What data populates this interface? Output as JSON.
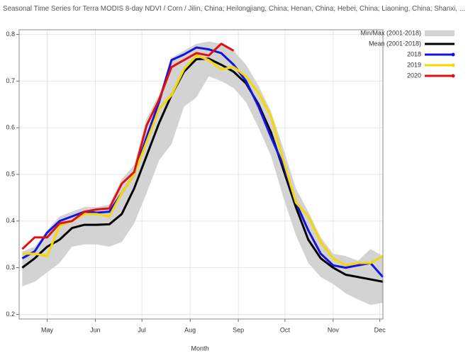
{
  "chart_data": {
    "type": "line",
    "title": "Seasonal Time Series for Terra MODIS 8-day NDVI / Corn / Jilin, China; Heilongjiang, China; Henan, China; Hebei, China; Liaoning, China; Shanxi, ...",
    "x_label": "Month",
    "x": [
      105,
      113,
      121,
      129,
      137,
      145,
      153,
      161,
      169,
      177,
      185,
      193,
      201,
      209,
      217,
      225,
      233,
      241,
      249,
      257,
      265,
      273,
      281,
      289,
      297,
      305,
      313,
      321,
      329,
      337
    ],
    "xlim": [
      103,
      337
    ],
    "xticks": [
      {
        "value": 121,
        "label": "May"
      },
      {
        "value": 152,
        "label": "Jun"
      },
      {
        "value": 182,
        "label": "Jul"
      },
      {
        "value": 213,
        "label": "Aug"
      },
      {
        "value": 244,
        "label": "Sep"
      },
      {
        "value": 274,
        "label": "Oct"
      },
      {
        "value": 305,
        "label": "Nov"
      },
      {
        "value": 335,
        "label": "Dec"
      }
    ],
    "ylim": [
      0.19,
      0.81
    ],
    "yticks": [
      0.2,
      0.3,
      0.4,
      0.5,
      0.6,
      0.7,
      0.8
    ],
    "grid": true,
    "legend": "right",
    "band": {
      "name": "Min/Max (2001-2018)",
      "color": "#d3d3d3",
      "max": [
        0.335,
        0.345,
        0.38,
        0.41,
        0.42,
        0.43,
        0.43,
        0.435,
        0.49,
        0.52,
        0.62,
        0.67,
        0.75,
        0.765,
        0.78,
        0.785,
        0.78,
        0.765,
        0.735,
        0.69,
        0.635,
        0.555,
        0.47,
        0.42,
        0.365,
        0.33,
        0.325,
        0.315,
        0.34,
        0.325
      ],
      "min": [
        0.26,
        0.27,
        0.29,
        0.31,
        0.345,
        0.35,
        0.35,
        0.345,
        0.355,
        0.395,
        0.46,
        0.53,
        0.565,
        0.645,
        0.665,
        0.71,
        0.7,
        0.685,
        0.655,
        0.6,
        0.54,
        0.45,
        0.37,
        0.31,
        0.28,
        0.265,
        0.245,
        0.232,
        0.22,
        0.225
      ]
    },
    "series": [
      {
        "name": "Mean (2001-2018)",
        "color": "#000000",
        "values": [
          0.3,
          0.32,
          0.345,
          0.36,
          0.385,
          0.392,
          0.392,
          0.393,
          0.415,
          0.47,
          0.54,
          0.61,
          0.67,
          0.72,
          0.747,
          0.748,
          0.735,
          0.72,
          0.695,
          0.65,
          0.59,
          0.51,
          0.43,
          0.36,
          0.32,
          0.3,
          0.285,
          0.28,
          0.275,
          0.27
        ]
      },
      {
        "name": "2018",
        "color": "#1414e0",
        "values": [
          0.32,
          0.335,
          0.375,
          0.4,
          0.41,
          0.42,
          0.418,
          0.42,
          0.46,
          0.5,
          0.58,
          0.655,
          0.745,
          0.757,
          0.772,
          0.768,
          0.76,
          0.735,
          0.7,
          0.645,
          0.58,
          0.52,
          0.44,
          0.38,
          0.33,
          0.305,
          0.3,
          0.305,
          0.31,
          0.28
        ]
      },
      {
        "name": "2019",
        "color": "#f5d800",
        "values": [
          0.33,
          0.33,
          0.325,
          0.39,
          0.4,
          0.415,
          0.415,
          0.41,
          0.46,
          0.5,
          0.57,
          0.64,
          0.67,
          0.725,
          0.755,
          0.745,
          0.725,
          0.73,
          0.71,
          0.675,
          0.625,
          0.53,
          0.44,
          0.41,
          0.355,
          0.32,
          0.305,
          0.31,
          0.31,
          0.325
        ]
      },
      {
        "name": "2020",
        "color": "#e01010",
        "values": [
          0.34,
          0.365,
          0.365,
          0.395,
          0.4,
          0.42,
          0.425,
          0.427,
          0.48,
          0.505,
          0.605,
          0.66,
          0.73,
          0.745,
          0.76,
          0.755,
          0.78,
          0.765,
          null,
          null,
          null,
          null,
          null,
          null,
          null,
          null,
          null,
          null,
          null,
          null
        ]
      }
    ]
  }
}
